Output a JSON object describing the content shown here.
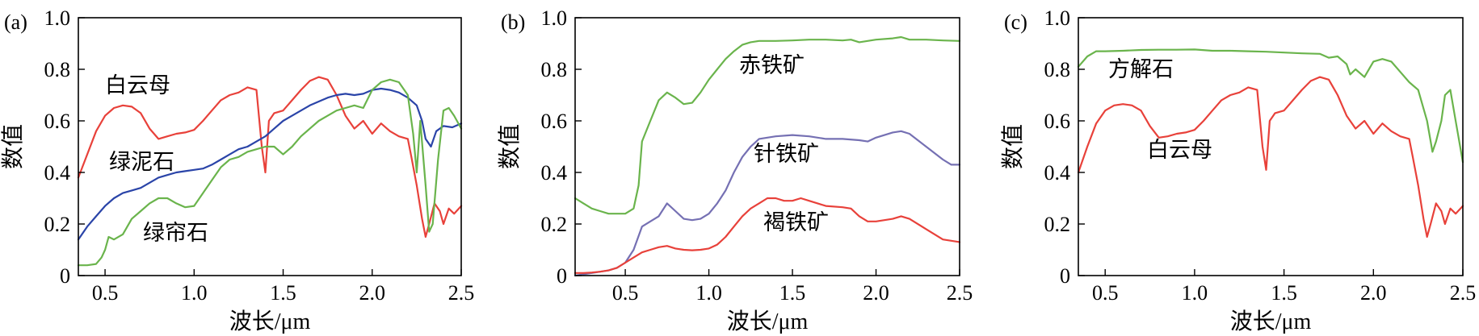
{
  "chart_data": [
    {
      "type": "line",
      "panel_label": "(a)",
      "xlabel": "波长/μm",
      "ylabel": "数值",
      "xlim": [
        0.35,
        2.5
      ],
      "ylim": [
        0,
        1.0
      ],
      "xticks": [
        0.5,
        1.0,
        1.5,
        2.0,
        2.5
      ],
      "xtick_labels": [
        "0.5",
        "1.0",
        "1.5",
        "2.0",
        "2.5"
      ],
      "yticks": [
        0,
        0.2,
        0.4,
        0.6,
        0.8,
        1.0
      ],
      "ytick_labels": [
        "0",
        "0.2",
        "0.4",
        "0.6",
        "0.8",
        "1.0"
      ],
      "series": [
        {
          "name": "白云母",
          "color": "#e8413a",
          "x": [
            0.35,
            0.4,
            0.45,
            0.5,
            0.55,
            0.6,
            0.65,
            0.7,
            0.75,
            0.8,
            0.85,
            0.9,
            0.95,
            1.0,
            1.05,
            1.1,
            1.15,
            1.2,
            1.25,
            1.3,
            1.35,
            1.38,
            1.4,
            1.42,
            1.45,
            1.5,
            1.55,
            1.6,
            1.65,
            1.7,
            1.75,
            1.8,
            1.85,
            1.9,
            1.95,
            2.0,
            2.05,
            2.1,
            2.15,
            2.2,
            2.22,
            2.25,
            2.28,
            2.3,
            2.32,
            2.35,
            2.38,
            2.4,
            2.43,
            2.46,
            2.5
          ],
          "y": [
            0.38,
            0.47,
            0.56,
            0.62,
            0.65,
            0.66,
            0.655,
            0.63,
            0.57,
            0.53,
            0.54,
            0.55,
            0.555,
            0.565,
            0.6,
            0.64,
            0.68,
            0.7,
            0.71,
            0.73,
            0.72,
            0.5,
            0.4,
            0.6,
            0.63,
            0.64,
            0.68,
            0.72,
            0.755,
            0.77,
            0.76,
            0.7,
            0.62,
            0.57,
            0.6,
            0.55,
            0.59,
            0.56,
            0.54,
            0.53,
            0.46,
            0.35,
            0.22,
            0.15,
            0.2,
            0.28,
            0.25,
            0.2,
            0.26,
            0.24,
            0.27
          ]
        },
        {
          "name": "绿泥石",
          "color": "#2a44a8",
          "x": [
            0.35,
            0.4,
            0.45,
            0.5,
            0.55,
            0.6,
            0.65,
            0.7,
            0.75,
            0.8,
            0.85,
            0.9,
            0.95,
            1.0,
            1.05,
            1.1,
            1.15,
            1.2,
            1.25,
            1.3,
            1.35,
            1.4,
            1.45,
            1.5,
            1.55,
            1.6,
            1.65,
            1.7,
            1.75,
            1.8,
            1.85,
            1.9,
            1.95,
            2.0,
            2.05,
            2.1,
            2.15,
            2.2,
            2.25,
            2.28,
            2.3,
            2.33,
            2.36,
            2.4,
            2.45,
            2.5
          ],
          "y": [
            0.14,
            0.19,
            0.23,
            0.27,
            0.3,
            0.32,
            0.33,
            0.34,
            0.36,
            0.38,
            0.39,
            0.4,
            0.405,
            0.41,
            0.415,
            0.43,
            0.45,
            0.47,
            0.49,
            0.5,
            0.52,
            0.54,
            0.57,
            0.6,
            0.62,
            0.64,
            0.66,
            0.675,
            0.69,
            0.7,
            0.705,
            0.7,
            0.705,
            0.72,
            0.725,
            0.72,
            0.71,
            0.69,
            0.66,
            0.6,
            0.53,
            0.5,
            0.56,
            0.58,
            0.575,
            0.59
          ]
        },
        {
          "name": "绿帘石",
          "color": "#6ab44c",
          "x": [
            0.35,
            0.4,
            0.45,
            0.48,
            0.5,
            0.52,
            0.55,
            0.6,
            0.65,
            0.7,
            0.75,
            0.8,
            0.85,
            0.9,
            0.95,
            1.0,
            1.05,
            1.1,
            1.15,
            1.2,
            1.25,
            1.3,
            1.35,
            1.4,
            1.45,
            1.5,
            1.55,
            1.6,
            1.65,
            1.7,
            1.75,
            1.8,
            1.85,
            1.9,
            1.95,
            2.0,
            2.05,
            2.1,
            2.15,
            2.2,
            2.23,
            2.25,
            2.27,
            2.3,
            2.32,
            2.34,
            2.37,
            2.4,
            2.43,
            2.46,
            2.5
          ],
          "y": [
            0.04,
            0.04,
            0.045,
            0.07,
            0.1,
            0.15,
            0.14,
            0.16,
            0.22,
            0.25,
            0.28,
            0.3,
            0.3,
            0.28,
            0.265,
            0.27,
            0.32,
            0.37,
            0.42,
            0.45,
            0.46,
            0.48,
            0.49,
            0.5,
            0.5,
            0.47,
            0.5,
            0.54,
            0.57,
            0.6,
            0.62,
            0.64,
            0.65,
            0.66,
            0.65,
            0.72,
            0.75,
            0.76,
            0.75,
            0.7,
            0.55,
            0.4,
            0.6,
            0.35,
            0.17,
            0.2,
            0.45,
            0.64,
            0.65,
            0.62,
            0.57
          ]
        }
      ],
      "annotations": [
        "白云母",
        "绿泥石",
        "绿帘石"
      ]
    },
    {
      "type": "line",
      "panel_label": "(b)",
      "xlabel": "波长/μm",
      "ylabel": "数值",
      "xlim": [
        0.2,
        2.5
      ],
      "ylim": [
        0,
        1.0
      ],
      "xticks": [
        0.5,
        1.0,
        1.5,
        2.0,
        2.5
      ],
      "xtick_labels": [
        "0.5",
        "1.0",
        "1.5",
        "2.0",
        "2.5"
      ],
      "yticks": [
        0,
        0.2,
        0.4,
        0.6,
        0.8,
        1.0
      ],
      "ytick_labels": [
        "0",
        "0.2",
        "0.4",
        "0.6",
        "0.8",
        "1.0"
      ],
      "series": [
        {
          "name": "赤铁矿",
          "color": "#6ab44c",
          "x": [
            0.2,
            0.25,
            0.3,
            0.35,
            0.4,
            0.45,
            0.5,
            0.55,
            0.58,
            0.6,
            0.65,
            0.7,
            0.75,
            0.8,
            0.85,
            0.9,
            0.95,
            1.0,
            1.05,
            1.1,
            1.15,
            1.2,
            1.25,
            1.3,
            1.4,
            1.5,
            1.6,
            1.7,
            1.8,
            1.85,
            1.9,
            1.95,
            2.0,
            2.1,
            2.15,
            2.2,
            2.3,
            2.4,
            2.5
          ],
          "y": [
            0.3,
            0.28,
            0.26,
            0.25,
            0.24,
            0.24,
            0.24,
            0.26,
            0.35,
            0.52,
            0.6,
            0.68,
            0.71,
            0.69,
            0.665,
            0.67,
            0.71,
            0.76,
            0.8,
            0.84,
            0.87,
            0.895,
            0.905,
            0.91,
            0.91,
            0.912,
            0.915,
            0.915,
            0.912,
            0.915,
            0.905,
            0.91,
            0.915,
            0.92,
            0.925,
            0.915,
            0.915,
            0.912,
            0.91
          ]
        },
        {
          "name": "针铁矿",
          "color": "#7570b3",
          "x": [
            0.2,
            0.25,
            0.3,
            0.35,
            0.4,
            0.45,
            0.5,
            0.55,
            0.6,
            0.65,
            0.7,
            0.75,
            0.8,
            0.85,
            0.9,
            0.95,
            1.0,
            1.05,
            1.1,
            1.15,
            1.2,
            1.25,
            1.3,
            1.4,
            1.5,
            1.6,
            1.7,
            1.8,
            1.9,
            1.95,
            2.0,
            2.1,
            2.15,
            2.2,
            2.3,
            2.4,
            2.45,
            2.5
          ],
          "y": [
            0.0,
            0.005,
            0.01,
            0.015,
            0.02,
            0.03,
            0.05,
            0.1,
            0.19,
            0.21,
            0.23,
            0.28,
            0.25,
            0.22,
            0.215,
            0.22,
            0.24,
            0.28,
            0.33,
            0.4,
            0.46,
            0.5,
            0.53,
            0.54,
            0.545,
            0.54,
            0.53,
            0.53,
            0.525,
            0.52,
            0.535,
            0.555,
            0.56,
            0.55,
            0.5,
            0.45,
            0.43,
            0.43
          ]
        },
        {
          "name": "褐铁矿",
          "color": "#e8413a",
          "x": [
            0.2,
            0.25,
            0.3,
            0.35,
            0.4,
            0.45,
            0.5,
            0.55,
            0.6,
            0.65,
            0.7,
            0.75,
            0.8,
            0.85,
            0.9,
            0.95,
            1.0,
            1.05,
            1.1,
            1.15,
            1.2,
            1.25,
            1.3,
            1.35,
            1.4,
            1.45,
            1.5,
            1.55,
            1.6,
            1.7,
            1.8,
            1.85,
            1.9,
            1.95,
            2.0,
            2.1,
            2.15,
            2.2,
            2.3,
            2.4,
            2.5
          ],
          "y": [
            0.01,
            0.01,
            0.012,
            0.015,
            0.02,
            0.03,
            0.05,
            0.07,
            0.09,
            0.1,
            0.11,
            0.115,
            0.105,
            0.1,
            0.098,
            0.1,
            0.105,
            0.12,
            0.15,
            0.19,
            0.23,
            0.26,
            0.28,
            0.3,
            0.3,
            0.29,
            0.29,
            0.3,
            0.29,
            0.27,
            0.265,
            0.26,
            0.23,
            0.21,
            0.21,
            0.22,
            0.23,
            0.22,
            0.18,
            0.14,
            0.13
          ]
        }
      ],
      "annotations": [
        "赤铁矿",
        "针铁矿",
        "褐铁矿"
      ]
    },
    {
      "type": "line",
      "panel_label": "(c)",
      "xlabel": "波长/μm",
      "ylabel": "数值",
      "xlim": [
        0.35,
        2.5
      ],
      "ylim": [
        0,
        1.0
      ],
      "xticks": [
        0.5,
        1.0,
        1.5,
        2.0,
        2.5
      ],
      "xtick_labels": [
        "0.5",
        "1.0",
        "1.5",
        "2.0",
        "2.5"
      ],
      "yticks": [
        0,
        0.2,
        0.4,
        0.6,
        0.8,
        1.0
      ],
      "ytick_labels": [
        "0",
        "0.2",
        "0.4",
        "0.6",
        "0.8",
        "1.0"
      ],
      "series": [
        {
          "name": "方解石",
          "color": "#6ab44c",
          "x": [
            0.35,
            0.4,
            0.45,
            0.5,
            0.6,
            0.7,
            0.8,
            0.9,
            1.0,
            1.1,
            1.2,
            1.3,
            1.4,
            1.5,
            1.6,
            1.7,
            1.75,
            1.8,
            1.85,
            1.87,
            1.9,
            1.95,
            2.0,
            2.05,
            2.1,
            2.15,
            2.2,
            2.25,
            2.3,
            2.33,
            2.35,
            2.38,
            2.4,
            2.43,
            2.46,
            2.5
          ],
          "y": [
            0.81,
            0.85,
            0.87,
            0.87,
            0.872,
            0.875,
            0.876,
            0.876,
            0.877,
            0.872,
            0.872,
            0.87,
            0.868,
            0.865,
            0.862,
            0.86,
            0.845,
            0.85,
            0.82,
            0.78,
            0.8,
            0.77,
            0.83,
            0.84,
            0.83,
            0.79,
            0.75,
            0.72,
            0.6,
            0.48,
            0.52,
            0.6,
            0.7,
            0.72,
            0.6,
            0.44
          ]
        },
        {
          "name": "白云母",
          "color": "#e8413a",
          "x": [
            0.35,
            0.4,
            0.45,
            0.5,
            0.55,
            0.6,
            0.65,
            0.7,
            0.75,
            0.8,
            0.85,
            0.9,
            0.95,
            1.0,
            1.05,
            1.1,
            1.15,
            1.2,
            1.25,
            1.3,
            1.35,
            1.38,
            1.4,
            1.42,
            1.45,
            1.5,
            1.55,
            1.6,
            1.65,
            1.7,
            1.75,
            1.8,
            1.85,
            1.9,
            1.95,
            2.0,
            2.05,
            2.1,
            2.15,
            2.2,
            2.22,
            2.25,
            2.28,
            2.3,
            2.32,
            2.35,
            2.38,
            2.4,
            2.43,
            2.46,
            2.5
          ],
          "y": [
            0.4,
            0.5,
            0.59,
            0.64,
            0.66,
            0.665,
            0.66,
            0.64,
            0.58,
            0.535,
            0.54,
            0.55,
            0.555,
            0.565,
            0.6,
            0.64,
            0.68,
            0.7,
            0.71,
            0.73,
            0.72,
            0.5,
            0.41,
            0.6,
            0.63,
            0.64,
            0.68,
            0.72,
            0.755,
            0.77,
            0.76,
            0.7,
            0.62,
            0.57,
            0.6,
            0.55,
            0.59,
            0.56,
            0.54,
            0.53,
            0.46,
            0.35,
            0.22,
            0.15,
            0.2,
            0.28,
            0.25,
            0.2,
            0.26,
            0.24,
            0.27
          ]
        }
      ],
      "annotations": [
        "方解石",
        "白云母"
      ]
    }
  ]
}
